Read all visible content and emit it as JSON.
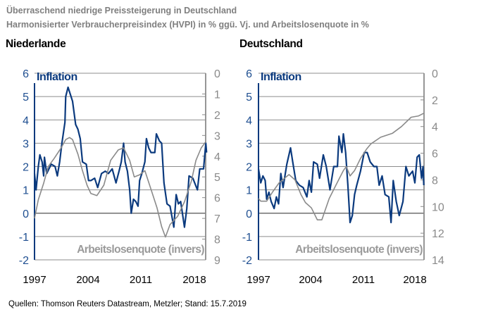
{
  "header": {
    "title": "Überraschend niedrige Preissteigerung in Deutschland",
    "subtitle": "Harmonisierter Verbraucherpreisindex (HVPI) in % ggü. Vj. und Arbeitslosenquote in %"
  },
  "footer": {
    "source": "Quellen: Thomson Reuters Datastream, Metzler; Stand: 15.7.2019"
  },
  "colors": {
    "inflation": "#0b3a7e",
    "unemployment": "#8a8a8a",
    "grid": "#8c8c8c",
    "left_axis_text": "#1f4f91"
  },
  "chart_data": [
    {
      "type": "line",
      "title": "Niederlande",
      "x_ticks": [
        "1997",
        "2004",
        "2011",
        "2018"
      ],
      "xlim": [
        1997,
        2019.6
      ],
      "left_axis": {
        "ylim": [
          -2,
          6
        ],
        "ticks": [
          "-2",
          "-1",
          "0",
          "1",
          "2",
          "3",
          "4",
          "5",
          "6"
        ]
      },
      "right_axis": {
        "ylim": [
          0,
          9
        ],
        "inverted": true,
        "ticks": [
          "0",
          "1",
          "2",
          "3",
          "4",
          "5",
          "6",
          "7",
          "8",
          "9"
        ]
      },
      "grid": true,
      "series": [
        {
          "name": "Inflation",
          "axis": "left",
          "points": [
            [
              1997.0,
              1.7
            ],
            [
              1997.2,
              1.0
            ],
            [
              1997.5,
              2.0
            ],
            [
              1997.7,
              2.5
            ],
            [
              1998.0,
              2.2
            ],
            [
              1998.2,
              1.6
            ],
            [
              1998.3,
              2.4
            ],
            [
              1998.6,
              1.7
            ],
            [
              1998.9,
              1.9
            ],
            [
              1999.2,
              2.1
            ],
            [
              1999.7,
              2.0
            ],
            [
              2000.0,
              1.6
            ],
            [
              2000.3,
              2.2
            ],
            [
              2000.6,
              3.0
            ],
            [
              2001.0,
              3.9
            ],
            [
              2001.1,
              5.0
            ],
            [
              2001.4,
              5.4
            ],
            [
              2001.7,
              5.1
            ],
            [
              2002.0,
              4.8
            ],
            [
              2002.4,
              3.8
            ],
            [
              2002.7,
              3.6
            ],
            [
              2003.0,
              3.2
            ],
            [
              2003.3,
              2.2
            ],
            [
              2003.8,
              2.1
            ],
            [
              2004.1,
              1.4
            ],
            [
              2004.4,
              1.4
            ],
            [
              2004.9,
              1.5
            ],
            [
              2005.3,
              1.1
            ],
            [
              2005.8,
              1.7
            ],
            [
              2006.3,
              1.8
            ],
            [
              2006.7,
              1.7
            ],
            [
              2007.2,
              1.9
            ],
            [
              2007.7,
              1.3
            ],
            [
              2008.1,
              1.8
            ],
            [
              2008.4,
              2.2
            ],
            [
              2008.7,
              3.0
            ],
            [
              2008.9,
              2.2
            ],
            [
              2009.2,
              1.8
            ],
            [
              2009.5,
              1.0
            ],
            [
              2009.7,
              0.0
            ],
            [
              2010.0,
              0.6
            ],
            [
              2010.3,
              0.5
            ],
            [
              2010.6,
              0.3
            ],
            [
              2010.8,
              1.4
            ],
            [
              2011.1,
              1.7
            ],
            [
              2011.5,
              2.2
            ],
            [
              2011.7,
              3.2
            ],
            [
              2012.0,
              2.8
            ],
            [
              2012.3,
              2.6
            ],
            [
              2012.8,
              2.6
            ],
            [
              2013.0,
              3.4
            ],
            [
              2013.4,
              3.1
            ],
            [
              2013.7,
              3.0
            ],
            [
              2014.0,
              1.3
            ],
            [
              2014.4,
              0.4
            ],
            [
              2014.8,
              0.3
            ],
            [
              2015.3,
              -0.6
            ],
            [
              2015.6,
              0.8
            ],
            [
              2015.9,
              0.4
            ],
            [
              2016.2,
              0.5
            ],
            [
              2016.7,
              -0.6
            ],
            [
              2017.0,
              0.2
            ],
            [
              2017.3,
              1.6
            ],
            [
              2017.8,
              1.5
            ],
            [
              2018.4,
              1.0
            ],
            [
              2018.7,
              1.9
            ],
            [
              2019.2,
              1.9
            ],
            [
              2019.5,
              3.0
            ],
            [
              2019.6,
              2.6
            ]
          ]
        },
        {
          "name": "Arbeitslosenquote (invers)",
          "axis": "right",
          "points": [
            [
              1997.0,
              7.0
            ],
            [
              1997.5,
              6.1
            ],
            [
              1998.2,
              5.3
            ],
            [
              1998.8,
              4.5
            ],
            [
              1999.6,
              4.1
            ],
            [
              2000.5,
              3.6
            ],
            [
              2001.1,
              3.2
            ],
            [
              2001.6,
              3.1
            ],
            [
              2002.0,
              3.2
            ],
            [
              2002.7,
              3.9
            ],
            [
              2003.3,
              4.7
            ],
            [
              2003.9,
              5.4
            ],
            [
              2004.4,
              5.8
            ],
            [
              2005.2,
              5.9
            ],
            [
              2006.1,
              5.4
            ],
            [
              2007.0,
              4.2
            ],
            [
              2008.0,
              3.7
            ],
            [
              2008.7,
              3.6
            ],
            [
              2009.5,
              4.2
            ],
            [
              2010.1,
              5.0
            ],
            [
              2010.8,
              4.9
            ],
            [
              2011.5,
              4.7
            ],
            [
              2012.3,
              5.6
            ],
            [
              2013.1,
              6.5
            ],
            [
              2013.7,
              7.4
            ],
            [
              2014.2,
              7.9
            ],
            [
              2014.8,
              7.3
            ],
            [
              2015.8,
              6.9
            ],
            [
              2016.7,
              6.2
            ],
            [
              2017.6,
              5.2
            ],
            [
              2018.2,
              4.2
            ],
            [
              2018.9,
              3.6
            ],
            [
              2019.5,
              3.3
            ]
          ]
        }
      ]
    },
    {
      "type": "line",
      "title": "Deutschland",
      "x_ticks": [
        "1997",
        "2004",
        "2011",
        "2018"
      ],
      "xlim": [
        1997,
        2019.2
      ],
      "left_axis": {
        "ylim": [
          -2,
          6
        ],
        "ticks": [
          "-2",
          "-1",
          "0",
          "1",
          "2",
          "3",
          "4",
          "5",
          "6"
        ]
      },
      "right_axis": {
        "ylim": [
          0,
          14
        ],
        "inverted": true,
        "ticks": [
          "0",
          "2",
          "4",
          "6",
          "8",
          "10",
          "12",
          "14"
        ]
      },
      "grid": true,
      "series": [
        {
          "name": "Inflation",
          "axis": "left",
          "points": [
            [
              1997.0,
              1.9
            ],
            [
              1997.3,
              1.3
            ],
            [
              1997.6,
              1.6
            ],
            [
              1997.9,
              1.4
            ],
            [
              1998.1,
              0.6
            ],
            [
              1998.4,
              0.9
            ],
            [
              1998.7,
              0.5
            ],
            [
              1999.1,
              0.2
            ],
            [
              1999.4,
              0.7
            ],
            [
              1999.7,
              0.4
            ],
            [
              2000.0,
              1.7
            ],
            [
              2000.3,
              1.1
            ],
            [
              2000.8,
              2.1
            ],
            [
              2001.3,
              2.8
            ],
            [
              2001.6,
              2.2
            ],
            [
              2002.0,
              1.4
            ],
            [
              2002.5,
              1.2
            ],
            [
              2003.0,
              1.1
            ],
            [
              2003.5,
              0.7
            ],
            [
              2003.8,
              1.4
            ],
            [
              2004.1,
              0.9
            ],
            [
              2004.4,
              2.2
            ],
            [
              2004.9,
              2.1
            ],
            [
              2005.2,
              1.5
            ],
            [
              2005.7,
              2.5
            ],
            [
              2006.1,
              2.0
            ],
            [
              2006.6,
              1.0
            ],
            [
              2007.1,
              2.0
            ],
            [
              2007.6,
              2.0
            ],
            [
              2007.8,
              3.3
            ],
            [
              2008.2,
              2.6
            ],
            [
              2008.4,
              3.4
            ],
            [
              2008.7,
              2.6
            ],
            [
              2009.0,
              1.2
            ],
            [
              2009.3,
              -0.4
            ],
            [
              2009.6,
              -0.1
            ],
            [
              2009.9,
              0.8
            ],
            [
              2010.2,
              1.2
            ],
            [
              2010.7,
              1.8
            ],
            [
              2011.2,
              2.6
            ],
            [
              2011.6,
              2.6
            ],
            [
              2012.0,
              2.2
            ],
            [
              2012.5,
              2.0
            ],
            [
              2012.9,
              2.0
            ],
            [
              2013.2,
              1.2
            ],
            [
              2013.6,
              1.6
            ],
            [
              2014.0,
              0.8
            ],
            [
              2014.5,
              0.7
            ],
            [
              2014.8,
              -0.4
            ],
            [
              2015.1,
              1.4
            ],
            [
              2015.5,
              0.5
            ],
            [
              2015.9,
              -0.1
            ],
            [
              2016.4,
              0.5
            ],
            [
              2016.8,
              2.0
            ],
            [
              2017.2,
              1.6
            ],
            [
              2017.7,
              1.8
            ],
            [
              2018.0,
              1.3
            ],
            [
              2018.3,
              2.4
            ],
            [
              2018.6,
              2.5
            ],
            [
              2018.9,
              1.5
            ],
            [
              2019.1,
              2.0
            ],
            [
              2019.2,
              1.2
            ]
          ]
        },
        {
          "name": "Arbeitslosenquote (invers)",
          "axis": "right",
          "points": [
            [
              1997.0,
              9.4
            ],
            [
              1997.3,
              9.6
            ],
            [
              1998.1,
              9.6
            ],
            [
              1998.9,
              8.9
            ],
            [
              1999.8,
              8.2
            ],
            [
              2001.1,
              7.6
            ],
            [
              2001.9,
              8.0
            ],
            [
              2002.7,
              9.1
            ],
            [
              2003.3,
              9.7
            ],
            [
              2004.1,
              10.1
            ],
            [
              2004.9,
              11.0
            ],
            [
              2005.5,
              11.0
            ],
            [
              2006.5,
              9.4
            ],
            [
              2007.4,
              8.4
            ],
            [
              2008.4,
              7.3
            ],
            [
              2008.8,
              7.0
            ],
            [
              2009.3,
              7.7
            ],
            [
              2009.9,
              7.3
            ],
            [
              2010.7,
              6.4
            ],
            [
              2011.5,
              5.7
            ],
            [
              2012.1,
              5.3
            ],
            [
              2013.4,
              4.8
            ],
            [
              2015.0,
              4.5
            ],
            [
              2016.2,
              4.0
            ],
            [
              2017.5,
              3.3
            ],
            [
              2018.5,
              3.2
            ],
            [
              2019.2,
              3.0
            ]
          ]
        }
      ]
    }
  ]
}
